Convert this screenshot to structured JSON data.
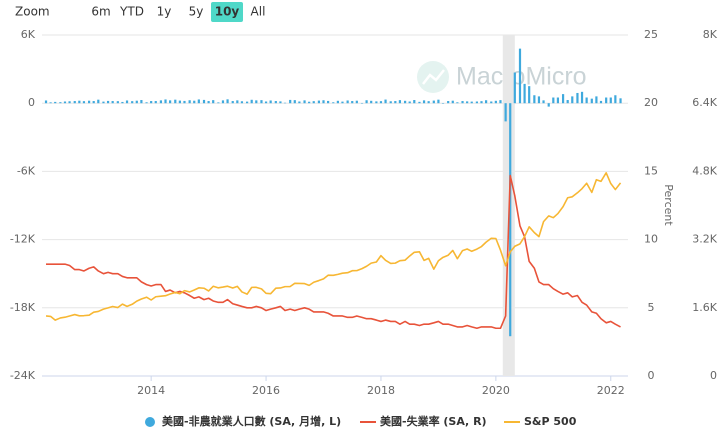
{
  "range_selector": {
    "label": "Zoom",
    "buttons": [
      "6m",
      "YTD",
      "1y",
      "5y",
      "10y",
      "All"
    ],
    "selected": 4
  },
  "chart_data": {
    "type": "combo",
    "watermark": "MacroMicro",
    "x": [
      2012.17,
      2012.25,
      2012.33,
      2012.42,
      2012.5,
      2012.58,
      2012.67,
      2012.75,
      2012.83,
      2012.92,
      2013,
      2013.08,
      2013.17,
      2013.25,
      2013.33,
      2013.42,
      2013.5,
      2013.58,
      2013.67,
      2013.75,
      2013.83,
      2013.92,
      2014,
      2014.08,
      2014.17,
      2014.25,
      2014.33,
      2014.42,
      2014.5,
      2014.58,
      2014.67,
      2014.75,
      2014.83,
      2014.92,
      2015,
      2015.08,
      2015.17,
      2015.25,
      2015.33,
      2015.42,
      2015.5,
      2015.58,
      2015.67,
      2015.75,
      2015.83,
      2015.92,
      2016,
      2016.08,
      2016.17,
      2016.25,
      2016.33,
      2016.42,
      2016.5,
      2016.58,
      2016.67,
      2016.75,
      2016.83,
      2016.92,
      2017,
      2017.08,
      2017.17,
      2017.25,
      2017.33,
      2017.42,
      2017.5,
      2017.58,
      2017.67,
      2017.75,
      2017.83,
      2017.92,
      2018,
      2018.08,
      2018.17,
      2018.25,
      2018.33,
      2018.42,
      2018.5,
      2018.58,
      2018.67,
      2018.75,
      2018.83,
      2018.92,
      2019,
      2019.08,
      2019.17,
      2019.25,
      2019.33,
      2019.42,
      2019.5,
      2019.58,
      2019.67,
      2019.75,
      2019.83,
      2019.92,
      2020,
      2020.08,
      2020.17,
      2020.25,
      2020.33,
      2020.42,
      2020.5,
      2020.58,
      2020.67,
      2020.75,
      2020.83,
      2020.92,
      2021,
      2021.08,
      2021.17,
      2021.25,
      2021.33,
      2021.42,
      2021.5,
      2021.58,
      2021.67,
      2021.75,
      2021.83,
      2021.92,
      2022,
      2022.08,
      2022.17
    ],
    "xlim": [
      2012.1,
      2022.3
    ],
    "xticks": [
      2014,
      2016,
      2018,
      2020,
      2022
    ],
    "ylim": [
      -24000,
      6000
    ],
    "yticks": [
      {
        "value": -24000,
        "label": "-24K"
      },
      {
        "value": -18000,
        "label": "-18K"
      },
      {
        "value": -12000,
        "label": "-12K"
      },
      {
        "value": -6000,
        "label": "-6K"
      },
      0,
      {
        "value": 6000,
        "label": "6K"
      }
    ],
    "y2lim": [
      0,
      25
    ],
    "y2ticks": [
      0,
      5,
      10,
      15,
      20,
      25
    ],
    "y2label": "Percent",
    "y3lim": [
      0,
      8000
    ],
    "y3ticks": [
      0,
      {
        "value": 1600,
        "label": "1.6K"
      },
      {
        "value": 3200,
        "label": "3.2K"
      },
      {
        "value": 4800,
        "label": "4.8K"
      },
      {
        "value": 6400,
        "label": "6.4K"
      },
      {
        "value": 8000,
        "label": "8K"
      }
    ],
    "grid": true,
    "highlight_x": [
      2020.12,
      2020.33
    ],
    "legend": "bottom",
    "series": [
      {
        "name": "美國-非農就業人口數 (SA, 月增, L)",
        "type": "bar",
        "axis": "y",
        "color": "#3fa9dd",
        "values": [
          240,
          75,
          115,
          90,
          150,
          170,
          190,
          220,
          180,
          220,
          190,
          310,
          140,
          200,
          190,
          180,
          110,
          240,
          180,
          220,
          280,
          80,
          190,
          190,
          250,
          330,
          250,
          310,
          230,
          200,
          260,
          220,
          330,
          290,
          190,
          270,
          70,
          250,
          340,
          190,
          250,
          170,
          140,
          300,
          250,
          270,
          150,
          240,
          190,
          160,
          40,
          290,
          270,
          150,
          250,
          130,
          180,
          230,
          260,
          200,
          80,
          210,
          140,
          240,
          190,
          220,
          20,
          260,
          210,
          160,
          180,
          320,
          170,
          190,
          270,
          210,
          150,
          280,
          120,
          250,
          180,
          230,
          310,
          10,
          190,
          220,
          80,
          190,
          160,
          140,
          150,
          180,
          260,
          150,
          210,
          270,
          -1600,
          -20500,
          2700,
          4800,
          1700,
          1500,
          700,
          600,
          250,
          -300,
          500,
          500,
          800,
          280,
          600,
          900,
          1000,
          500,
          400,
          600,
          200,
          500,
          500,
          700,
          430
        ]
      },
      {
        "name": "美國-失業率 (SA, R)",
        "type": "line",
        "axis": "y2",
        "color": "#e8533a",
        "values": [
          8.2,
          8.2,
          8.2,
          8.2,
          8.2,
          8.1,
          7.8,
          7.8,
          7.7,
          7.9,
          8.0,
          7.7,
          7.5,
          7.6,
          7.5,
          7.5,
          7.3,
          7.2,
          7.2,
          7.2,
          6.9,
          6.7,
          6.6,
          6.7,
          6.7,
          6.2,
          6.3,
          6.1,
          6.2,
          6.1,
          5.9,
          5.7,
          5.8,
          5.6,
          5.7,
          5.5,
          5.4,
          5.4,
          5.6,
          5.3,
          5.2,
          5.1,
          5.0,
          5.0,
          5.1,
          5.0,
          4.8,
          4.9,
          5.0,
          5.1,
          4.8,
          4.9,
          4.8,
          4.9,
          5.0,
          4.9,
          4.7,
          4.7,
          4.7,
          4.6,
          4.4,
          4.4,
          4.4,
          4.3,
          4.3,
          4.4,
          4.3,
          4.2,
          4.2,
          4.1,
          4.0,
          4.1,
          4.0,
          4.0,
          3.8,
          4.0,
          3.8,
          3.8,
          3.7,
          3.8,
          3.8,
          3.9,
          4.0,
          3.8,
          3.8,
          3.7,
          3.6,
          3.6,
          3.7,
          3.6,
          3.5,
          3.6,
          3.6,
          3.6,
          3.5,
          3.5,
          4.4,
          14.7,
          13.2,
          11.0,
          10.2,
          8.4,
          7.9,
          6.9,
          6.7,
          6.7,
          6.4,
          6.2,
          6.0,
          6.1,
          5.8,
          5.9,
          5.4,
          5.2,
          4.7,
          4.6,
          4.2,
          3.9,
          4.0,
          3.8,
          3.6
        ]
      },
      {
        "name": "S&P 500",
        "type": "line",
        "axis": "y3",
        "color": "#f7b733",
        "values": [
          1408,
          1398,
          1310,
          1362,
          1379,
          1407,
          1441,
          1412,
          1416,
          1426,
          1498,
          1515,
          1569,
          1598,
          1631,
          1606,
          1686,
          1633,
          1682,
          1757,
          1806,
          1848,
          1783,
          1859,
          1872,
          1884,
          1924,
          1960,
          1931,
          2003,
          1972,
          2018,
          2068,
          2059,
          1995,
          2105,
          2068,
          2086,
          2107,
          2063,
          2104,
          1972,
          1920,
          2079,
          2080,
          2044,
          1940,
          1932,
          2060,
          2065,
          2097,
          2099,
          2174,
          2171,
          2168,
          2126,
          2199,
          2239,
          2279,
          2364,
          2363,
          2384,
          2412,
          2423,
          2470,
          2472,
          2519,
          2575,
          2648,
          2674,
          2824,
          2714,
          2641,
          2648,
          2705,
          2718,
          2816,
          2902,
          2914,
          2712,
          2760,
          2507,
          2704,
          2784,
          2834,
          2946,
          2752,
          2942,
          2980,
          2926,
          2977,
          3038,
          3141,
          3231,
          3226,
          2954,
          2585,
          2912,
          3044,
          3100,
          3271,
          3500,
          3363,
          3270,
          3622,
          3756,
          3714,
          3811,
          3973,
          4181,
          4204,
          4298,
          4395,
          4523,
          4308,
          4605,
          4567,
          4766,
          4516,
          4374,
          4530
        ]
      }
    ]
  }
}
